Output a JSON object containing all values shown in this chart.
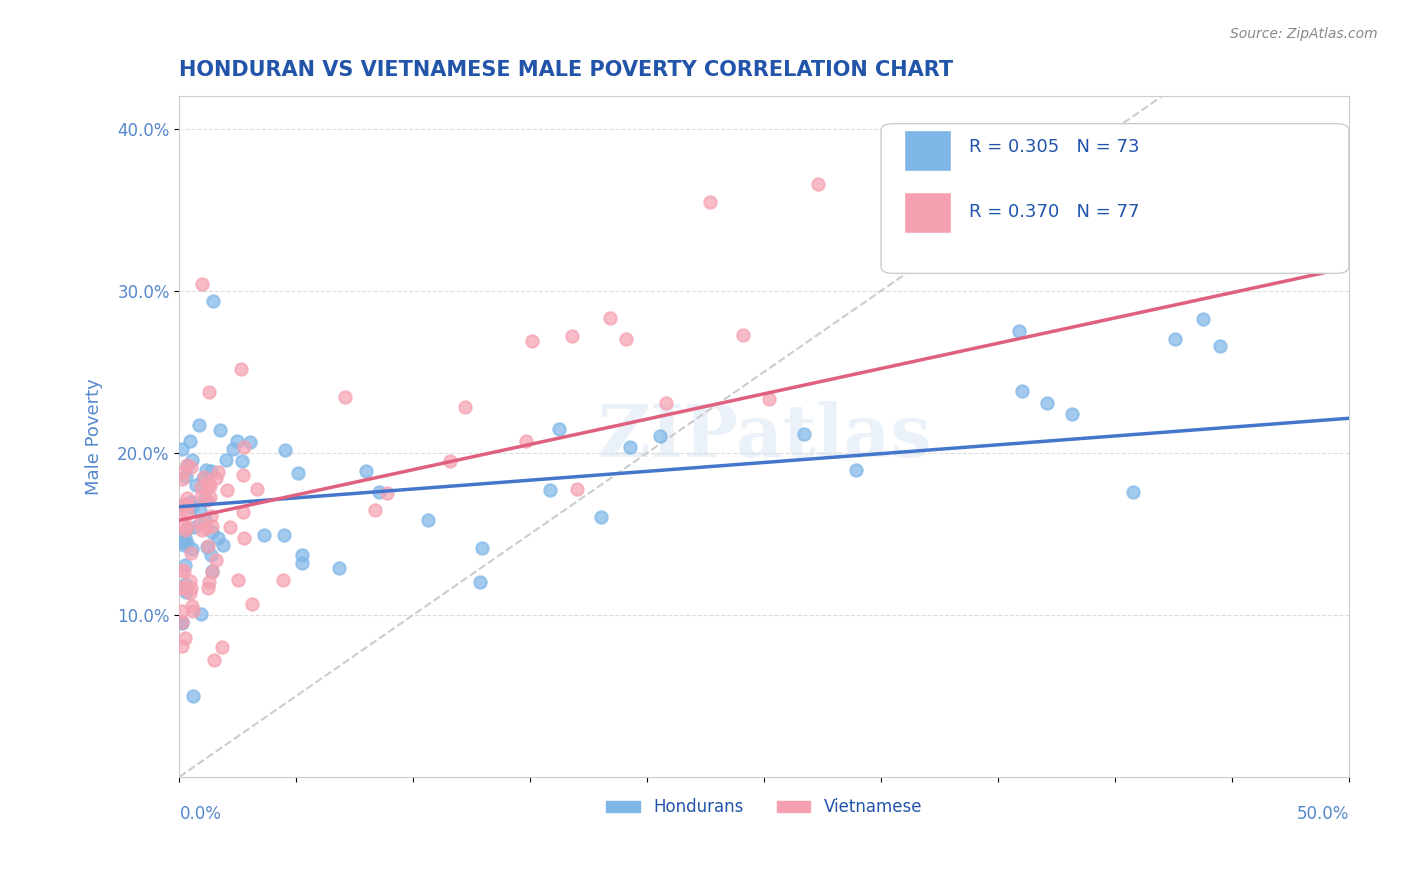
{
  "title": "HONDURAN VS VIETNAMESE MALE POVERTY CORRELATION CHART",
  "source": "Source: ZipAtlas.com",
  "ylabel": "Male Poverty",
  "xlim": [
    0.0,
    0.5
  ],
  "ylim": [
    0.0,
    0.42
  ],
  "yticks": [
    0.1,
    0.2,
    0.3,
    0.4
  ],
  "ytick_labels": [
    "10.0%",
    "20.0%",
    "30.0%",
    "40.0%"
  ],
  "xticks": [
    0.0,
    0.05,
    0.1,
    0.15,
    0.2,
    0.25,
    0.3,
    0.35,
    0.4,
    0.45,
    0.5
  ],
  "legend_R_honduran": "R = 0.305",
  "legend_N_honduran": "N = 73",
  "legend_R_vietnamese": "R = 0.370",
  "legend_N_vietnamese": "N = 77",
  "color_honduran": "#7EB6E8",
  "color_vietnamese": "#F4A0B0",
  "color_line_honduran": "#4477CC",
  "color_line_vietnamese": "#E06080",
  "color_diagonal": "#CCCCCC",
  "title_color": "#2255AA",
  "axis_label_color": "#5588CC",
  "background_color": "#FFFFFF",
  "watermark": "ZIPatlas"
}
